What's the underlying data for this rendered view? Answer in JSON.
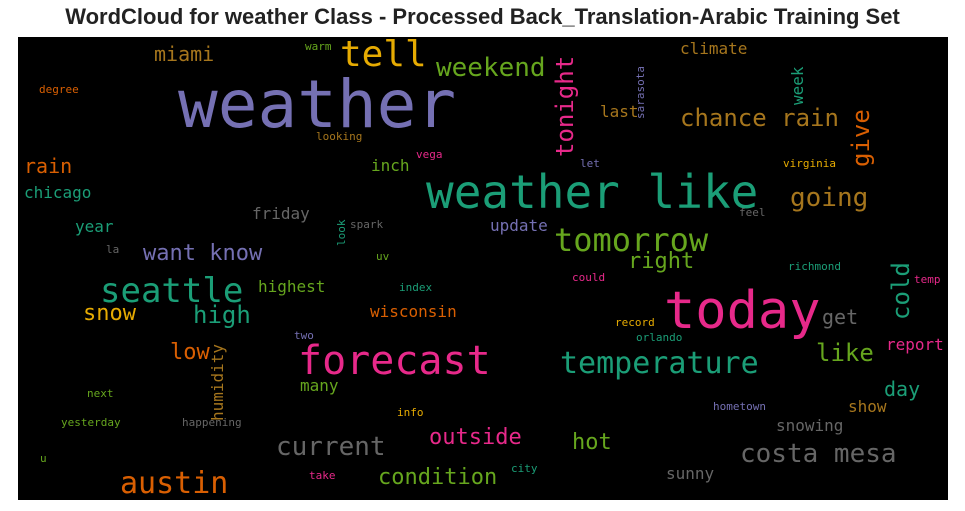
{
  "title": "WordCloud for weather Class - Processed Back_Translation-Arabic Training Set",
  "words": [
    {
      "text": "weather",
      "color": "#7570b3"
    },
    {
      "text": "weather like",
      "color": "#1b9e77"
    },
    {
      "text": "today",
      "color": "#e7298a"
    },
    {
      "text": "forecast",
      "color": "#e7298a"
    },
    {
      "text": "tell",
      "color": "#e6ab02"
    },
    {
      "text": "weekend",
      "color": "#66a61e"
    },
    {
      "text": "tonight",
      "color": "#e7298a"
    },
    {
      "text": "seattle",
      "color": "#1b9e77"
    },
    {
      "text": "tomorrow",
      "color": "#66a61e"
    },
    {
      "text": "temperature",
      "color": "#1b9e77"
    },
    {
      "text": "austin",
      "color": "#d95f02"
    },
    {
      "text": "costa mesa",
      "color": "#666666"
    },
    {
      "text": "current",
      "color": "#666666"
    },
    {
      "text": "chance rain",
      "color": "#a6761d"
    },
    {
      "text": "going",
      "color": "#a6761d"
    },
    {
      "text": "want know",
      "color": "#7570b3"
    },
    {
      "text": "give",
      "color": "#d95f02"
    },
    {
      "text": "cold",
      "color": "#1b9e77"
    },
    {
      "text": "high",
      "color": "#1b9e77"
    },
    {
      "text": "snow",
      "color": "#e6ab02"
    },
    {
      "text": "low",
      "color": "#d95f02"
    },
    {
      "text": "like",
      "color": "#66a61e"
    },
    {
      "text": "right",
      "color": "#66a61e"
    },
    {
      "text": "outside",
      "color": "#e7298a"
    },
    {
      "text": "condition",
      "color": "#66a61e"
    },
    {
      "text": "hot",
      "color": "#66a61e"
    },
    {
      "text": "miami",
      "color": "#a6761d"
    },
    {
      "text": "rain",
      "color": "#d95f02"
    },
    {
      "text": "chicago",
      "color": "#1b9e77"
    },
    {
      "text": "climate",
      "color": "#a6761d"
    },
    {
      "text": "week",
      "color": "#1b9e77"
    },
    {
      "text": "last",
      "color": "#a6761d"
    },
    {
      "text": "inch",
      "color": "#66a61e"
    },
    {
      "text": "friday",
      "color": "#666666"
    },
    {
      "text": "update",
      "color": "#7570b3"
    },
    {
      "text": "year",
      "color": "#1b9e77"
    },
    {
      "text": "highest",
      "color": "#66a61e"
    },
    {
      "text": "wisconsin",
      "color": "#d95f02"
    },
    {
      "text": "get",
      "color": "#666666"
    },
    {
      "text": "report",
      "color": "#e7298a"
    },
    {
      "text": "day",
      "color": "#1b9e77"
    },
    {
      "text": "show",
      "color": "#a6761d"
    },
    {
      "text": "snowing",
      "color": "#666666"
    },
    {
      "text": "sunny",
      "color": "#666666"
    },
    {
      "text": "humidity",
      "color": "#a6761d"
    },
    {
      "text": "many",
      "color": "#66a61e"
    },
    {
      "text": "degree",
      "color": "#d95f02"
    },
    {
      "text": "warm",
      "color": "#66a61e"
    },
    {
      "text": "looking",
      "color": "#a6761d"
    },
    {
      "text": "sarasota",
      "color": "#7570b3"
    },
    {
      "text": "vega",
      "color": "#e7298a"
    },
    {
      "text": "let",
      "color": "#7570b3"
    },
    {
      "text": "virginia",
      "color": "#e6ab02"
    },
    {
      "text": "feel",
      "color": "#666666"
    },
    {
      "text": "spark",
      "color": "#666666"
    },
    {
      "text": "look",
      "color": "#1b9e77"
    },
    {
      "text": "la",
      "color": "#666666"
    },
    {
      "text": "uv",
      "color": "#66a61e"
    },
    {
      "text": "index",
      "color": "#1b9e77"
    },
    {
      "text": "could",
      "color": "#e7298a"
    },
    {
      "text": "richmond",
      "color": "#1b9e77"
    },
    {
      "text": "temp",
      "color": "#e7298a"
    },
    {
      "text": "record",
      "color": "#e6ab02"
    },
    {
      "text": "orlando",
      "color": "#1b9e77"
    },
    {
      "text": "two",
      "color": "#7570b3"
    },
    {
      "text": "next",
      "color": "#66a61e"
    },
    {
      "text": "yesterday",
      "color": "#66a61e"
    },
    {
      "text": "happening",
      "color": "#666666"
    },
    {
      "text": "info",
      "color": "#e6ab02"
    },
    {
      "text": "hometown",
      "color": "#7570b3"
    },
    {
      "text": "u",
      "color": "#66a61e"
    },
    {
      "text": "take",
      "color": "#e7298a"
    },
    {
      "text": "city",
      "color": "#1b9e77"
    }
  ]
}
